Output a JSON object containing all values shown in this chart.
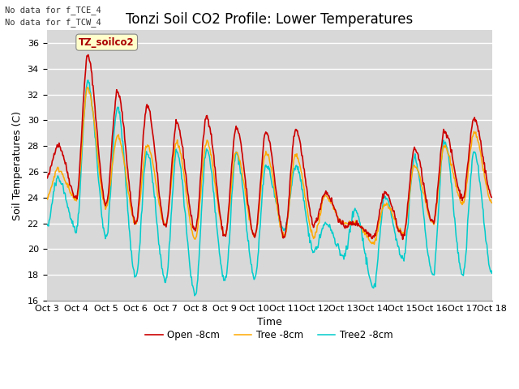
{
  "title": "Tonzi Soil CO2 Profile: Lower Temperatures",
  "xlabel": "Time",
  "ylabel": "Soil Temperatures (C)",
  "ylim": [
    16,
    37
  ],
  "yticks": [
    16,
    18,
    20,
    22,
    24,
    26,
    28,
    30,
    32,
    34,
    36
  ],
  "xtick_labels": [
    "Oct 3",
    "Oct 4",
    "Oct 5",
    "Oct 6",
    "Oct 7",
    "Oct 8",
    "Oct 9",
    "Oct 10",
    "Oct 11",
    "Oct 12",
    "Oct 13",
    "Oct 14",
    "Oct 15",
    "Oct 16",
    "Oct 17",
    "Oct 18"
  ],
  "text_top_left": [
    "No data for f_TCE_4",
    "No data for f_TCW_4"
  ],
  "legend_label_box": "TZ_soilco2",
  "series": {
    "open": {
      "label": "Open -8cm",
      "color": "#cc0000"
    },
    "tree": {
      "label": "Tree -8cm",
      "color": "#ffaa00"
    },
    "tree2": {
      "label": "Tree2 -8cm",
      "color": "#00cccc"
    }
  },
  "background_color": "#ffffff",
  "plot_bg_color": "#d8d8d8",
  "grid_color": "#ffffff",
  "title_fontsize": 12,
  "axis_label_fontsize": 9,
  "tick_fontsize": 8
}
